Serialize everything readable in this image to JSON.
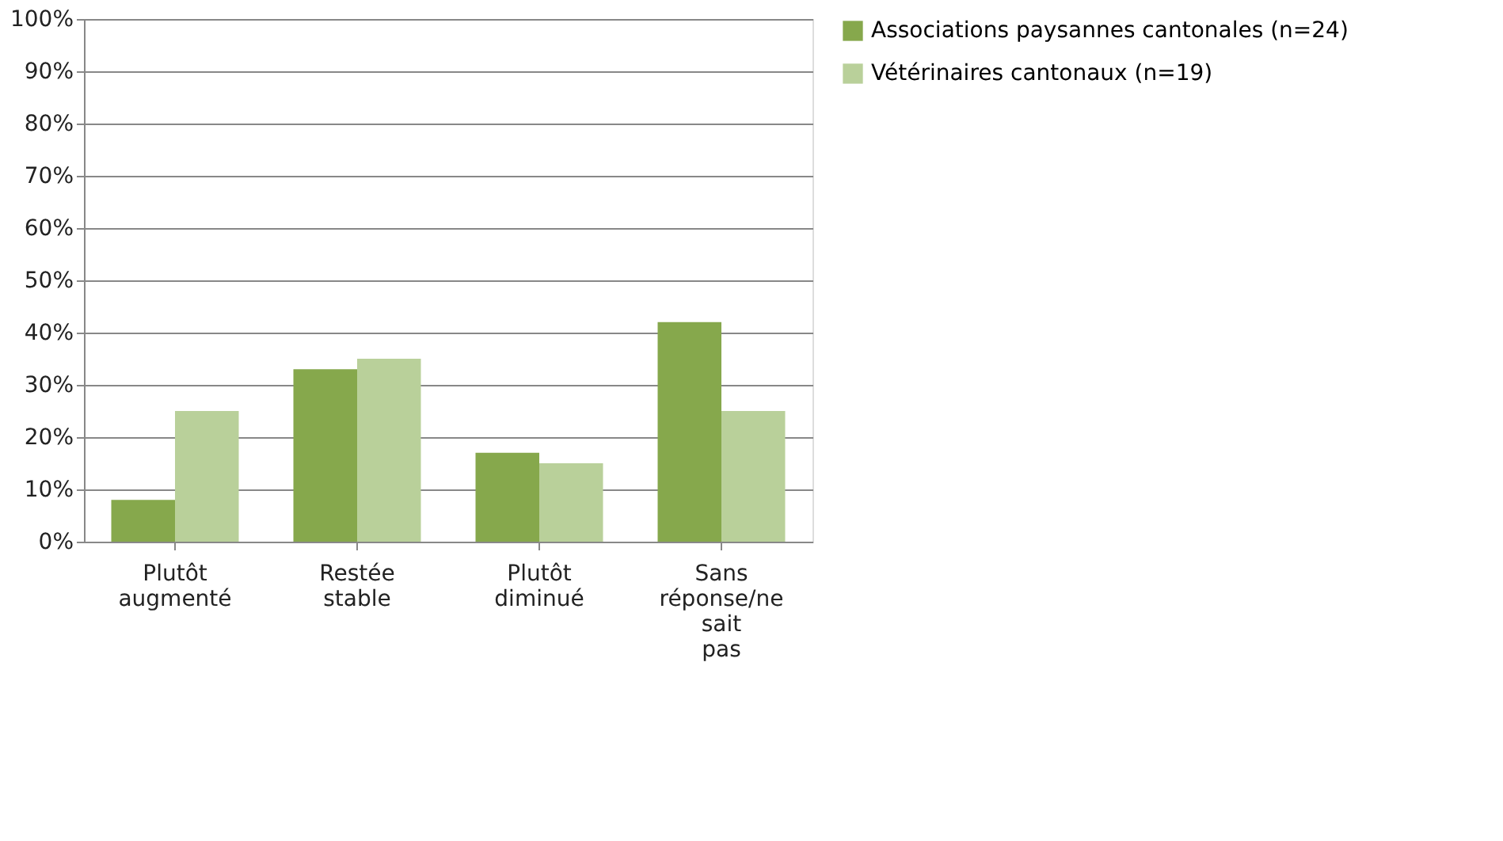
{
  "chart_data": {
    "type": "bar",
    "categories": [
      "Plutôt augmenté",
      "Restée stable",
      "Plutôt diminué",
      "Sans réponse/ne sait pas"
    ],
    "series": [
      {
        "name": "Associations paysannes cantonales (n=24)",
        "color": "#86a84c",
        "values": [
          8,
          33,
          17,
          42
        ]
      },
      {
        "name": "Vétérinaires cantonaux (n=19)",
        "color": "#b9d09a",
        "values": [
          25,
          35,
          15,
          25
        ]
      }
    ],
    "ylim": [
      0,
      100
    ],
    "yticks": [
      {
        "value": 0,
        "label": "0%"
      },
      {
        "value": 10,
        "label": "10%"
      },
      {
        "value": 20,
        "label": "20%"
      },
      {
        "value": 30,
        "label": "30%"
      },
      {
        "value": 40,
        "label": "40%"
      },
      {
        "value": 50,
        "label": "50%"
      },
      {
        "value": 60,
        "label": "60%"
      },
      {
        "value": 70,
        "label": "70%"
      },
      {
        "value": 80,
        "label": "80%"
      },
      {
        "value": 90,
        "label": "90%"
      },
      {
        "value": 100,
        "label": "100%"
      }
    ],
    "grid": "y",
    "legend": "right"
  }
}
